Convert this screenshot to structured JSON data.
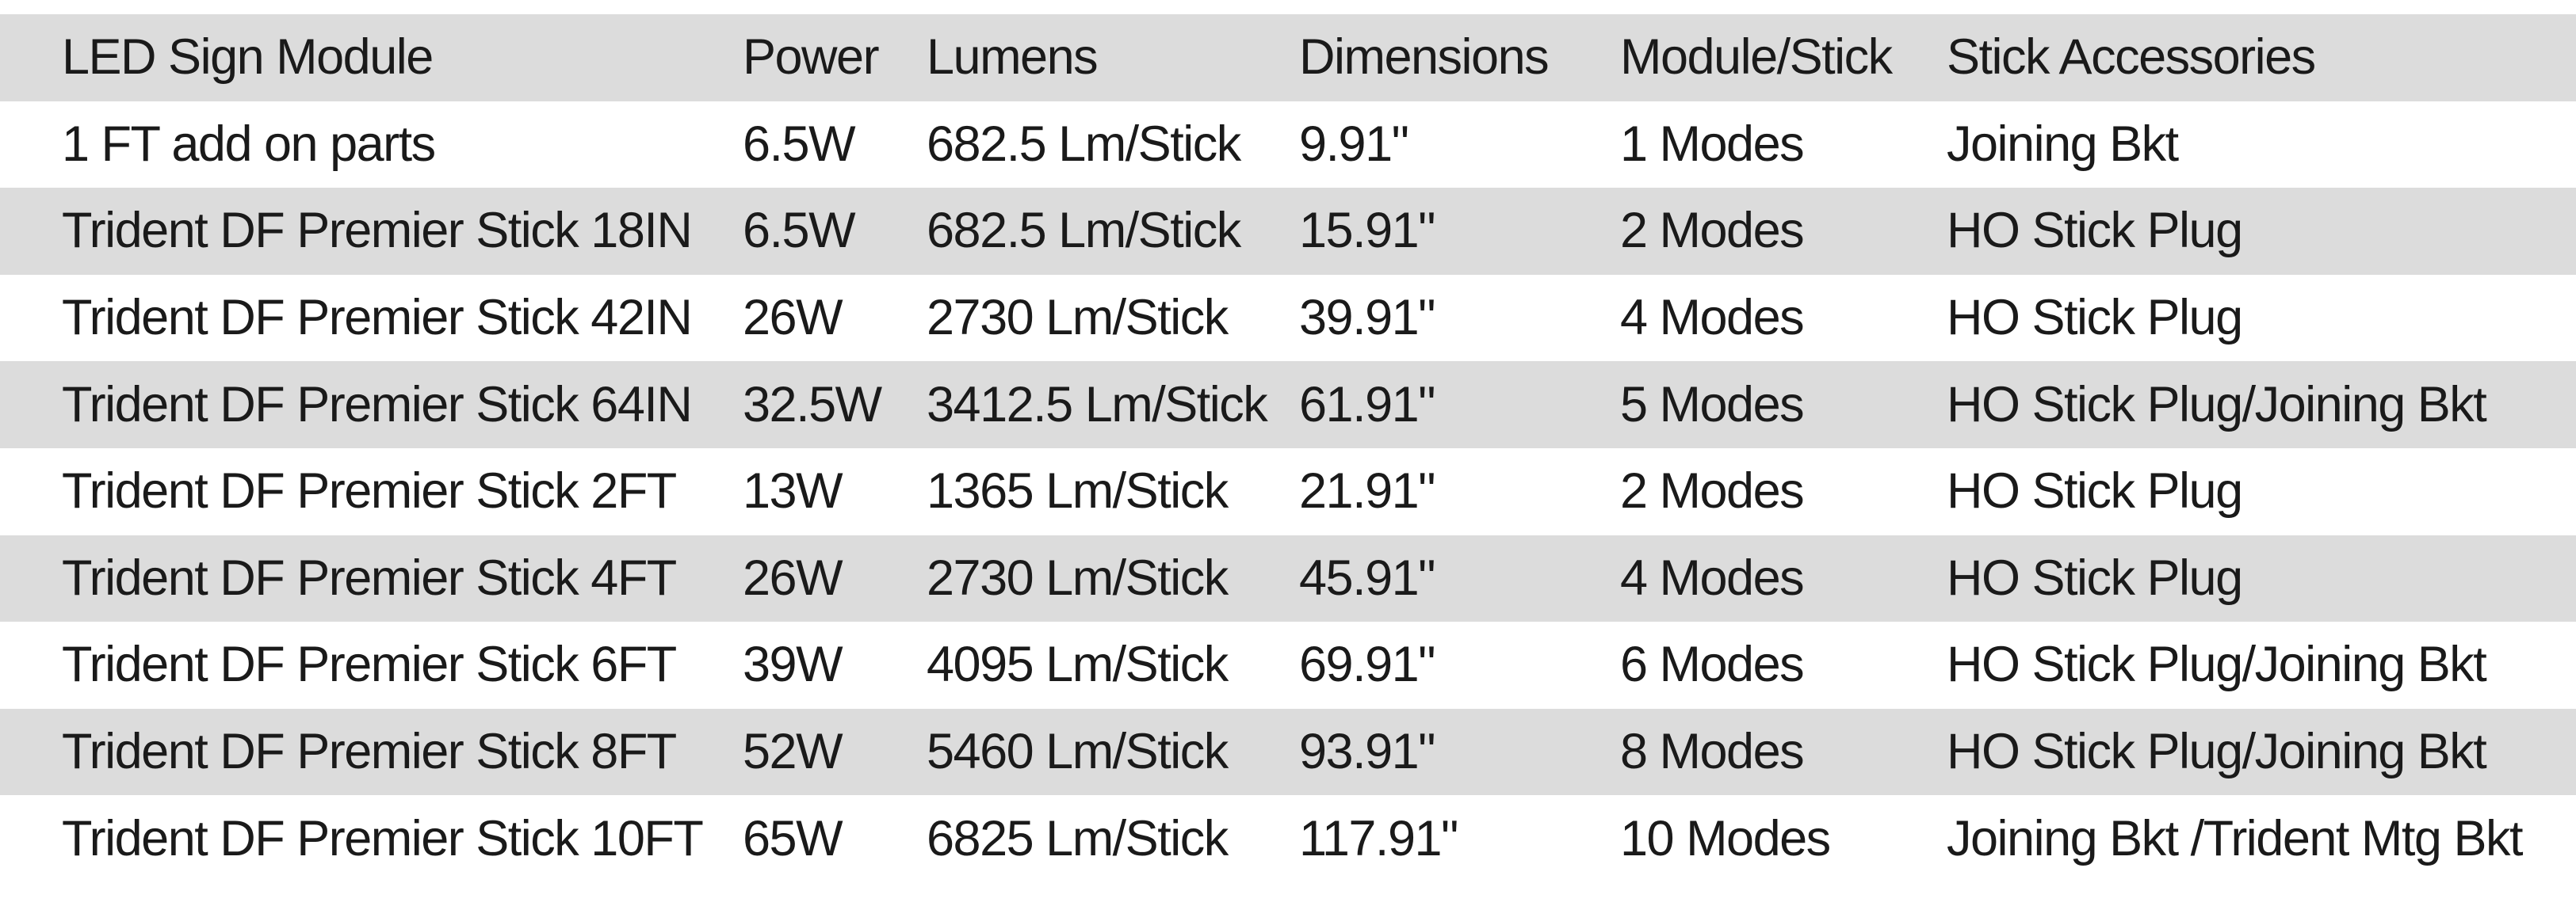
{
  "table": {
    "headers": [
      "LED Sign Module",
      "Power",
      "Lumens",
      "Dimensions",
      "Module/Stick",
      "Stick  Accessories"
    ],
    "rows": [
      [
        "1 FT add on parts",
        "6.5W",
        "682.5 Lm/Stick",
        "9.91\"",
        "1 Modes",
        "Joining Bkt"
      ],
      [
        "Trident DF Premier Stick 18IN",
        "6.5W",
        "682.5 Lm/Stick",
        "15.91\"",
        "2 Modes",
        "HO Stick Plug"
      ],
      [
        "Trident DF Premier Stick 42IN",
        "26W",
        "2730 Lm/Stick",
        "39.91\"",
        "4 Modes",
        "HO Stick Plug"
      ],
      [
        "Trident DF Premier Stick 64IN",
        "32.5W",
        "3412.5 Lm/Stick",
        "61.91\"",
        "5 Modes",
        "HO Stick Plug/Joining Bkt"
      ],
      [
        "Trident DF Premier Stick 2FT",
        "13W",
        "1365 Lm/Stick",
        "21.91\"",
        "2 Modes",
        "HO Stick Plug"
      ],
      [
        "Trident DF Premier Stick 4FT",
        "26W",
        "2730 Lm/Stick",
        "45.91\"",
        "4 Modes",
        "HO Stick Plug"
      ],
      [
        "Trident DF Premier Stick 6FT",
        "39W",
        "4095 Lm/Stick",
        "69.91\"",
        "6 Modes",
        "HO Stick Plug/Joining Bkt"
      ],
      [
        "Trident DF Premier Stick 8FT",
        "52W",
        "5460 Lm/Stick",
        "93.91\"",
        "8 Modes",
        "HO Stick Plug/Joining Bkt"
      ],
      [
        "Trident DF Premier Stick 10FT",
        "65W",
        "6825 Lm/Stick",
        "117.91\"",
        "10 Modes",
        "Joining Bkt /Trident Mtg Bkt"
      ]
    ]
  },
  "colors": {
    "stripe": "#dcdcdc",
    "background": "#ffffff",
    "text": "#1a1a1a"
  }
}
